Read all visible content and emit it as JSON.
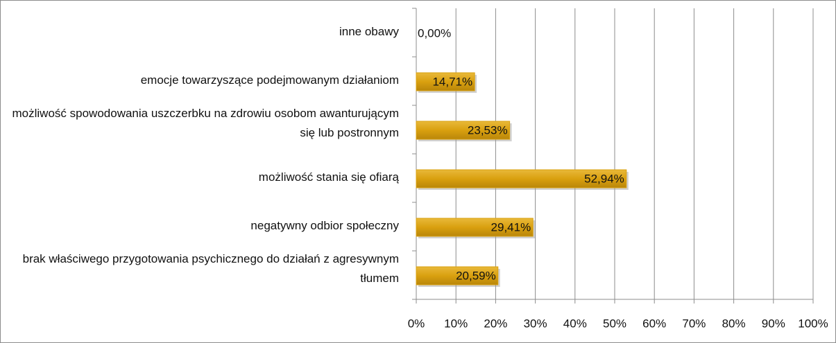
{
  "chart_data": {
    "type": "barh",
    "categories": [
      "inne obawy",
      "emocje towarzyszące podejmowanym działaniom",
      "możliwość spowodowania uszczerbku na zdrowiu osobom awanturującym się lub postronnym",
      "możliwość stania się ofiarą",
      "negatywny odbior społeczny",
      "brak właściwego przygotowania psychicznego do działań z agresywnym tłumem"
    ],
    "values": [
      0,
      14.71,
      23.53,
      52.94,
      29.41,
      20.59
    ],
    "value_labels": [
      "0,00%",
      "14,71%",
      "23,53%",
      "52,94%",
      "29,41%",
      "20,59%"
    ],
    "color": "#d9a00f",
    "xlim": [
      0,
      100
    ],
    "xticks": [
      {
        "value": 0,
        "label": "0%"
      },
      {
        "value": 10,
        "label": "10%"
      },
      {
        "value": 20,
        "label": "20%"
      },
      {
        "value": 30,
        "label": "30%"
      },
      {
        "value": 40,
        "label": "40%"
      },
      {
        "value": 50,
        "label": "50%"
      },
      {
        "value": 60,
        "label": "60%"
      },
      {
        "value": 70,
        "label": "70%"
      },
      {
        "value": 80,
        "label": "80%"
      },
      {
        "value": 90,
        "label": "90%"
      },
      {
        "value": 100,
        "label": "100%"
      }
    ],
    "grid": true
  }
}
